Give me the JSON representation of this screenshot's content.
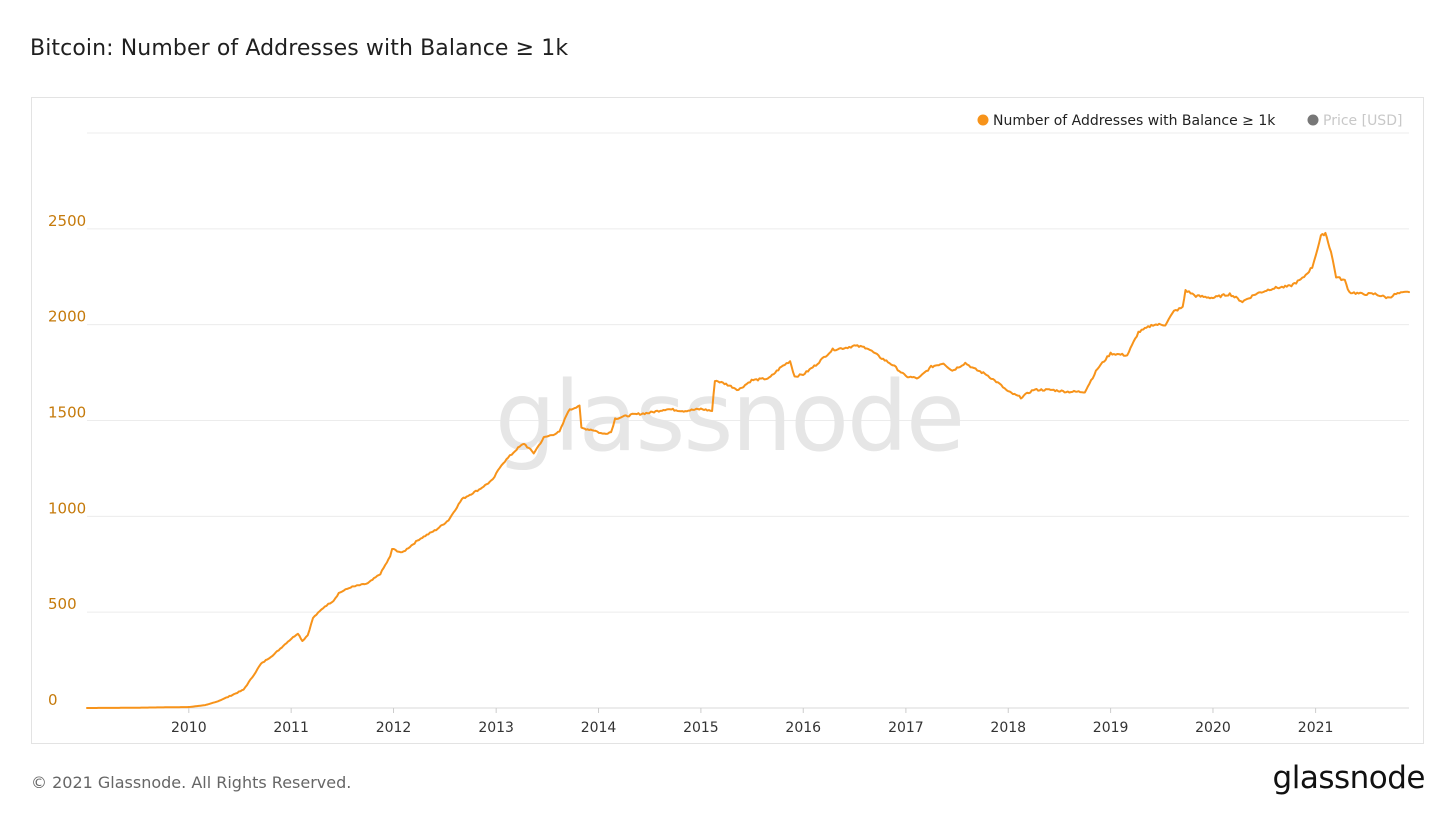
{
  "title": "Bitcoin: Number of Addresses with Balance ≥ 1k",
  "footer": {
    "copyright": "© 2021 Glassnode. All Rights Reserved.",
    "logo_text": "glassnode"
  },
  "watermark": "glassnode",
  "colors": {
    "series": "#f7931a",
    "axis_text": "#c57a0b",
    "price_dot": "#777777",
    "price_text": "#c8c8c8",
    "grid": "#ececec"
  },
  "chart_data": {
    "type": "line",
    "title": "Bitcoin: Number of Addresses with Balance ≥ 1k",
    "xlabel": "",
    "ylabel": "",
    "ylim": [
      0,
      3000
    ],
    "xlim": [
      "2009-01-03",
      "2021-11-30"
    ],
    "yticks": [
      0,
      500,
      1000,
      1500,
      2000,
      2500
    ],
    "xticks": [
      "2010",
      "2011",
      "2012",
      "2013",
      "2014",
      "2015",
      "2016",
      "2017",
      "2018",
      "2019",
      "2020",
      "2021"
    ],
    "grid": true,
    "legend": {
      "placement": "top-right",
      "entries": [
        {
          "name": "Number of Addresses with Balance ≥ 1k",
          "color": "#f7931a",
          "active": true
        },
        {
          "name": "Price [USD]",
          "color": "#777777",
          "active": false
        }
      ]
    },
    "series": [
      {
        "name": "Number of Addresses with Balance ≥ 1k",
        "color": "#f7931a",
        "points": [
          [
            "2009-01-03",
            0
          ],
          [
            "2009-06-01",
            1
          ],
          [
            "2010-01-01",
            5
          ],
          [
            "2010-03-01",
            15
          ],
          [
            "2010-04-15",
            35
          ],
          [
            "2010-06-01",
            65
          ],
          [
            "2010-07-15",
            95
          ],
          [
            "2010-08-15",
            160
          ],
          [
            "2010-09-15",
            230
          ],
          [
            "2010-11-01",
            280
          ],
          [
            "2010-12-15",
            340
          ],
          [
            "2011-01-25",
            390
          ],
          [
            "2011-02-10",
            350
          ],
          [
            "2011-03-01",
            380
          ],
          [
            "2011-03-20",
            470
          ],
          [
            "2011-05-01",
            530
          ],
          [
            "2011-06-01",
            560
          ],
          [
            "2011-06-20",
            600
          ],
          [
            "2011-08-01",
            630
          ],
          [
            "2011-10-01",
            650
          ],
          [
            "2011-11-15",
            700
          ],
          [
            "2011-12-20",
            790
          ],
          [
            "2011-12-27",
            830
          ],
          [
            "2012-02-01",
            810
          ],
          [
            "2012-04-01",
            880
          ],
          [
            "2012-06-01",
            930
          ],
          [
            "2012-07-15",
            980
          ],
          [
            "2012-09-01",
            1090
          ],
          [
            "2012-11-01",
            1140
          ],
          [
            "2012-12-20",
            1190
          ],
          [
            "2013-01-20",
            1270
          ],
          [
            "2013-03-15",
            1350
          ],
          [
            "2013-04-10",
            1380
          ],
          [
            "2013-05-15",
            1330
          ],
          [
            "2013-06-20",
            1410
          ],
          [
            "2013-08-15",
            1440
          ],
          [
            "2013-09-15",
            1550
          ],
          [
            "2013-10-25",
            1580
          ],
          [
            "2013-11-01",
            1460
          ],
          [
            "2013-12-15",
            1450
          ],
          [
            "2014-01-15",
            1430
          ],
          [
            "2014-02-15",
            1440
          ],
          [
            "2014-03-01",
            1510
          ],
          [
            "2014-05-01",
            1530
          ],
          [
            "2014-07-01",
            1540
          ],
          [
            "2014-09-01",
            1560
          ],
          [
            "2014-11-01",
            1550
          ],
          [
            "2015-01-01",
            1560
          ],
          [
            "2015-02-10",
            1550
          ],
          [
            "2015-02-20",
            1710
          ],
          [
            "2015-04-01",
            1690
          ],
          [
            "2015-05-15",
            1660
          ],
          [
            "2015-07-01",
            1710
          ],
          [
            "2015-09-01",
            1720
          ],
          [
            "2015-10-15",
            1780
          ],
          [
            "2015-11-15",
            1810
          ],
          [
            "2015-12-01",
            1730
          ],
          [
            "2016-01-01",
            1740
          ],
          [
            "2016-02-15",
            1790
          ],
          [
            "2016-03-15",
            1830
          ],
          [
            "2016-04-15",
            1870
          ],
          [
            "2016-06-01",
            1880
          ],
          [
            "2016-07-01",
            1890
          ],
          [
            "2016-08-15",
            1880
          ],
          [
            "2016-10-01",
            1830
          ],
          [
            "2016-11-15",
            1790
          ],
          [
            "2017-01-01",
            1730
          ],
          [
            "2017-02-15",
            1720
          ],
          [
            "2017-04-01",
            1780
          ],
          [
            "2017-05-15",
            1800
          ],
          [
            "2017-06-15",
            1760
          ],
          [
            "2017-08-01",
            1800
          ],
          [
            "2017-09-01",
            1770
          ],
          [
            "2017-10-15",
            1740
          ],
          [
            "2017-12-01",
            1690
          ],
          [
            "2018-01-01",
            1650
          ],
          [
            "2018-02-15",
            1620
          ],
          [
            "2018-04-01",
            1660
          ],
          [
            "2018-06-01",
            1660
          ],
          [
            "2018-08-01",
            1650
          ],
          [
            "2018-10-01",
            1650
          ],
          [
            "2018-11-15",
            1770
          ],
          [
            "2019-01-01",
            1850
          ],
          [
            "2019-03-01",
            1840
          ],
          [
            "2019-04-10",
            1960
          ],
          [
            "2019-06-01",
            2000
          ],
          [
            "2019-07-15",
            2000
          ],
          [
            "2019-08-15",
            2070
          ],
          [
            "2019-09-15",
            2090
          ],
          [
            "2019-09-25",
            2180
          ],
          [
            "2019-11-01",
            2150
          ],
          [
            "2020-01-01",
            2140
          ],
          [
            "2020-03-01",
            2160
          ],
          [
            "2020-04-15",
            2120
          ],
          [
            "2020-06-01",
            2160
          ],
          [
            "2020-08-01",
            2190
          ],
          [
            "2020-10-01",
            2200
          ],
          [
            "2020-11-15",
            2240
          ],
          [
            "2020-12-20",
            2300
          ],
          [
            "2021-01-20",
            2460
          ],
          [
            "2021-02-05",
            2480
          ],
          [
            "2021-02-25",
            2380
          ],
          [
            "2021-03-15",
            2250
          ],
          [
            "2021-04-15",
            2230
          ],
          [
            "2021-05-01",
            2170
          ],
          [
            "2021-06-15",
            2160
          ],
          [
            "2021-08-01",
            2160
          ],
          [
            "2021-09-15",
            2140
          ],
          [
            "2021-10-15",
            2160
          ],
          [
            "2021-11-30",
            2170
          ]
        ]
      }
    ]
  }
}
